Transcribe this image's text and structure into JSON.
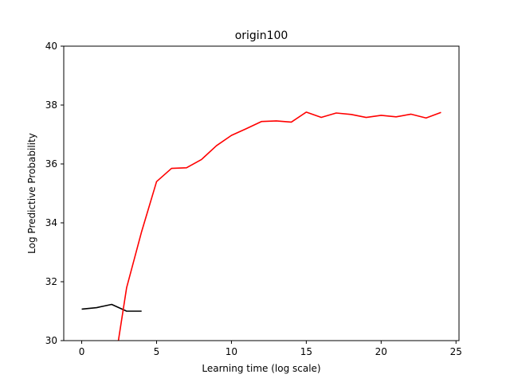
{
  "chart_data": {
    "type": "line",
    "title": "origin100",
    "xlabel": "Learning time (log scale)",
    "ylabel": "Log Predictive Probability",
    "xlim": [
      -1.2,
      25.2
    ],
    "ylim": [
      30,
      40
    ],
    "xticks": [
      0,
      5,
      10,
      15,
      20,
      25
    ],
    "yticks": [
      30,
      32,
      34,
      36,
      38,
      40
    ],
    "xtick_labels": [
      "0",
      "5",
      "10",
      "15",
      "20",
      "25"
    ],
    "ytick_labels": [
      "30",
      "32",
      "34",
      "36",
      "38",
      "40"
    ],
    "grid": false,
    "series": [
      {
        "color": "#000000",
        "x": [
          0,
          1,
          2,
          3,
          4
        ],
        "y": [
          31.07,
          31.12,
          31.23,
          31.0,
          31.0
        ]
      },
      {
        "color": "#ff0000",
        "x": [
          2.45,
          3,
          4,
          5,
          6,
          7,
          8,
          9,
          10,
          11,
          12,
          13,
          14,
          15,
          16,
          17,
          18,
          19,
          20,
          21,
          22,
          23,
          24
        ],
        "y": [
          30.0,
          31.8,
          33.7,
          35.4,
          35.85,
          35.87,
          36.15,
          36.62,
          36.97,
          37.2,
          37.44,
          37.46,
          37.42,
          37.76,
          37.58,
          37.73,
          37.68,
          37.58,
          37.65,
          37.6,
          37.69,
          37.56,
          37.75
        ]
      }
    ]
  }
}
